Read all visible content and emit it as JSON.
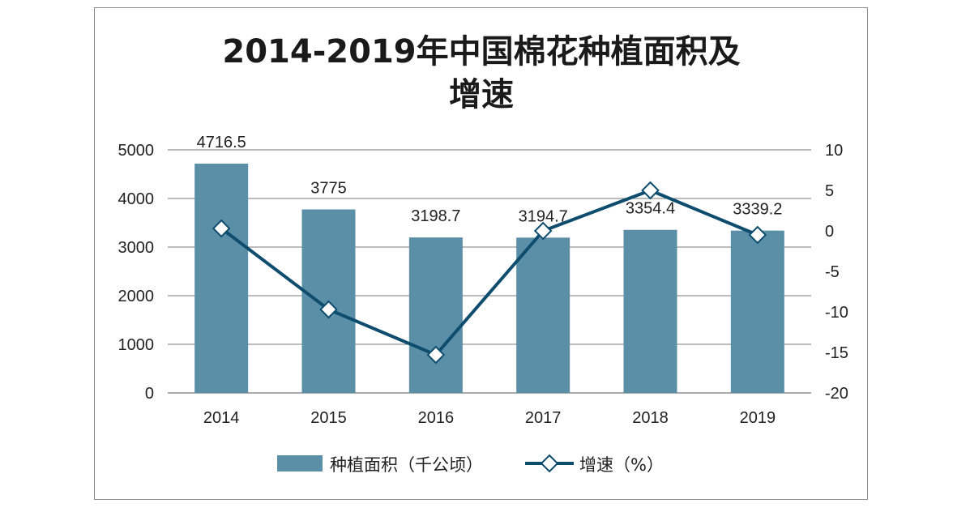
{
  "chart_data": {
    "type": "bar",
    "title_lines": [
      "2014-2019年中国棉花种植面积及",
      "增速"
    ],
    "categories": [
      "2014",
      "2015",
      "2016",
      "2017",
      "2018",
      "2019"
    ],
    "series": [
      {
        "name": "种植面积（千公顷）",
        "type": "bar",
        "axis": "left",
        "values": [
          4716.5,
          3775,
          3198.7,
          3194.7,
          3354.4,
          3339.2
        ],
        "labels": [
          "4716.5",
          "3775",
          "3198.7",
          "3194.7",
          "3354.4",
          "3339.2"
        ],
        "color": "#5b8fa8"
      },
      {
        "name": "增速（%）",
        "type": "line",
        "axis": "right",
        "values": [
          0.3,
          -9.7,
          -15.3,
          0.0,
          5.0,
          -0.5
        ],
        "color": "#0e4d6e"
      }
    ],
    "y_left": {
      "lim": [
        0,
        5000
      ],
      "ticks": [
        "0",
        "1000",
        "2000",
        "3000",
        "4000",
        "5000"
      ]
    },
    "y_right": {
      "lim": [
        -20,
        10
      ],
      "ticks": [
        "-20",
        "-15",
        "-10",
        "-5",
        "0",
        "5",
        "10"
      ]
    },
    "grid": true,
    "legend_position": "bottom"
  }
}
